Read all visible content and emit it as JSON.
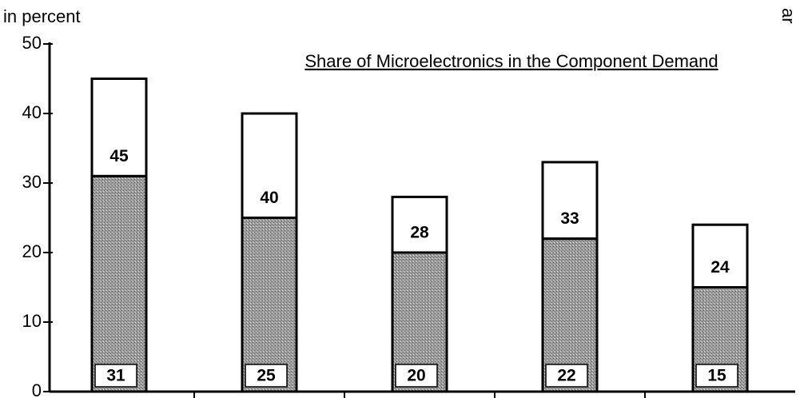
{
  "chart_data": {
    "type": "stacked_bar",
    "title": "Share of Microelectronics in the Component Demand",
    "y_label": "in percent",
    "corner_text": "ar",
    "series": [
      {
        "color": "#a0a0a0",
        "values": [
          31,
          25,
          20,
          22,
          15
        ]
      },
      {
        "color": "#ffffff",
        "values": [
          14,
          15,
          8,
          11,
          9
        ]
      }
    ],
    "totals": [
      45,
      40,
      28,
      33,
      24
    ],
    "ylim": [
      0,
      50
    ],
    "yticks": [
      0,
      10,
      20,
      30,
      40,
      50
    ]
  }
}
